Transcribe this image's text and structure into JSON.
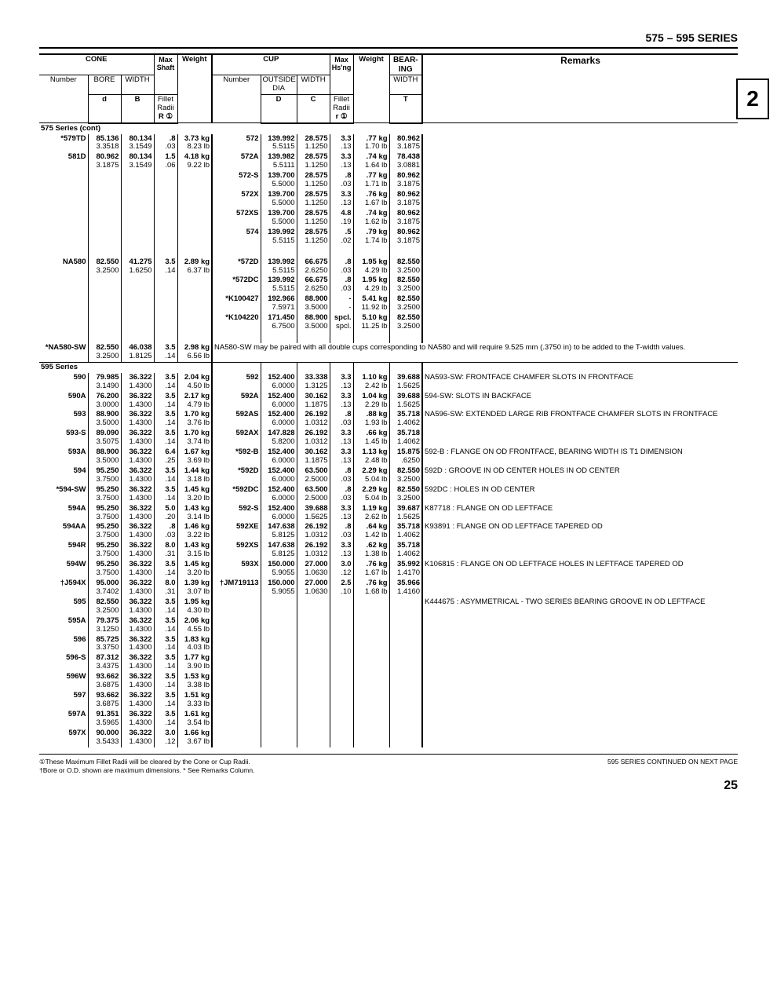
{
  "page": {
    "series_title": "575 – 595 SERIES",
    "section_tab": "2",
    "page_number": "25",
    "continued": "595 SERIES CONTINUED ON NEXT PAGE"
  },
  "header": {
    "cone": "CONE",
    "cup": "CUP",
    "bearing": "BEAR-\nING",
    "remarks": "Remarks",
    "number": "Number",
    "bore": "BORE",
    "width": "WIDTH",
    "max_shaft": "Max\nShaft",
    "fillet": "Fillet\nRadii",
    "weight": "Weight",
    "outside_dia": "OUTSIDE\nDIA",
    "max_hsng": "Max\nHs'ng",
    "d": "d",
    "B": "B",
    "R": "R ①",
    "D": "D",
    "C": "C",
    "r": "r ①",
    "T": "T"
  },
  "series575_label": "575 Series (cont)",
  "series595_label": "595 Series",
  "na580sw_remark": "NA580-SW may be paired with all double cups corresponding to NA580 and will require 9.525 mm (.3750 in) to be added to the T-width values.",
  "remarks595": [
    "NA593-SW: FRONTFACE CHAMFER SLOTS IN FRONTFACE",
    "594-SW: SLOTS IN BACKFACE",
    "NA596-SW: EXTENDED LARGE RIB FRONTFACE CHAMFER SLOTS IN FRONTFACE",
    "592-B : FLANGE ON OD FRONTFACE, BEARING WIDTH IS T1 DIMENSION",
    "592D : GROOVE IN OD CENTER HOLES IN OD CENTER",
    "592DC : HOLES IN OD CENTER",
    "K87718 : FLANGE ON OD LEFTFACE",
    "K93891 : FLANGE ON OD LEFTFACE TAPERED OD",
    "K106815 : FLANGE ON OD LEFTFACE HOLES IN LEFTFACE TAPERED OD",
    "K444675 : ASYMMETRICAL - TWO SERIES BEARING GROOVE IN OD LEFTFACE"
  ],
  "footnotes": {
    "f1": "①These Maximum Fillet Radii will be cleared by the Cone or Cup Radii.",
    "f2": "†Bore or O.D. shown are maximum dimensions.   * See Remarks Column."
  },
  "cones575": [
    {
      "n": "*579TD",
      "d": [
        "85.136",
        "3.3518"
      ],
      "B": [
        "80.134",
        "3.1549"
      ],
      "R": [
        ".8",
        ".03"
      ],
      "w": [
        "3.73 kg",
        "8.23 lb"
      ]
    },
    {
      "n": "581D",
      "d": [
        "80.962",
        "3.1875"
      ],
      "B": [
        "80.134",
        "3.1549"
      ],
      "R": [
        "1.5",
        ".06"
      ],
      "w": [
        "4.18 kg",
        "9.22 lb"
      ]
    },
    {
      "n": "NA580",
      "d": [
        "82.550",
        "3.2500"
      ],
      "B": [
        "41.275",
        "1.6250"
      ],
      "R": [
        "3.5",
        ".14"
      ],
      "w": [
        "2.89 kg",
        "6.37 lb"
      ]
    },
    {
      "n": "*NA580-SW",
      "d": [
        "82.550",
        "3.2500"
      ],
      "B": [
        "46.038",
        "1.8125"
      ],
      "R": [
        "3.5",
        ".14"
      ],
      "w": [
        "2.98 kg",
        "6.56 lb"
      ]
    }
  ],
  "cups575a": [
    {
      "n": "572",
      "D": [
        "139.992",
        "5.5115"
      ],
      "C": [
        "28.575",
        "1.1250"
      ],
      "r": [
        "3.3",
        ".13"
      ],
      "w": [
        ".77 kg",
        "1.70 lb"
      ],
      "T": [
        "80.962",
        "3.1875"
      ]
    },
    {
      "n": "572A",
      "D": [
        "139.982",
        "5.5111"
      ],
      "C": [
        "28.575",
        "1.1250"
      ],
      "r": [
        "3.3",
        ".13"
      ],
      "w": [
        ".74 kg",
        "1.64 lb"
      ],
      "T": [
        "78.438",
        "3.0881"
      ]
    },
    {
      "n": "572-S",
      "D": [
        "139.700",
        "5.5000"
      ],
      "C": [
        "28.575",
        "1.1250"
      ],
      "r": [
        ".8",
        ".03"
      ],
      "w": [
        ".77 kg",
        "1.71 lb"
      ],
      "T": [
        "80.962",
        "3.1875"
      ]
    },
    {
      "n": "572X",
      "D": [
        "139.700",
        "5.5000"
      ],
      "C": [
        "28.575",
        "1.1250"
      ],
      "r": [
        "3.3",
        ".13"
      ],
      "w": [
        ".76 kg",
        "1.67 lb"
      ],
      "T": [
        "80.962",
        "3.1875"
      ]
    },
    {
      "n": "572XS",
      "D": [
        "139.700",
        "5.5000"
      ],
      "C": [
        "28.575",
        "1.1250"
      ],
      "r": [
        "4.8",
        ".19"
      ],
      "w": [
        ".74 kg",
        "1.62 lb"
      ],
      "T": [
        "80.962",
        "3.1875"
      ]
    },
    {
      "n": "574",
      "D": [
        "139.992",
        "5.5115"
      ],
      "C": [
        "28.575",
        "1.1250"
      ],
      "r": [
        ".5",
        ".02"
      ],
      "w": [
        ".79 kg",
        "1.74 lb"
      ],
      "T": [
        "80.962",
        "3.1875"
      ]
    }
  ],
  "cups575b": [
    {
      "n": "*572D",
      "D": [
        "139.992",
        "5.5115"
      ],
      "C": [
        "66.675",
        "2.6250"
      ],
      "r": [
        ".8",
        ".03"
      ],
      "w": [
        "1.95 kg",
        "4.29 lb"
      ],
      "T": [
        "82.550",
        "3.2500"
      ]
    },
    {
      "n": "*572DC",
      "D": [
        "139.992",
        "5.5115"
      ],
      "C": [
        "66.675",
        "2.6250"
      ],
      "r": [
        ".8",
        ".03"
      ],
      "w": [
        "1.95 kg",
        "4.29 lb"
      ],
      "T": [
        "82.550",
        "3.2500"
      ]
    },
    {
      "n": "*K100427",
      "D": [
        "192.966",
        "7.5971"
      ],
      "C": [
        "88.900",
        "3.5000"
      ],
      "r": [
        "-",
        "-"
      ],
      "w": [
        "5.41 kg",
        "11.92 lb"
      ],
      "T": [
        "82.550",
        "3.2500"
      ]
    },
    {
      "n": "*K104220",
      "D": [
        "171.450",
        "6.7500"
      ],
      "C": [
        "88.900",
        "3.5000"
      ],
      "r": [
        "spcl.",
        "spcl."
      ],
      "w": [
        "5.10 kg",
        "11.25 lb"
      ],
      "T": [
        "82.550",
        "3.2500"
      ]
    }
  ],
  "rows595": [
    {
      "cone": {
        "n": "590",
        "d": [
          "79.985",
          "3.1490"
        ],
        "B": [
          "36.322",
          "1.4300"
        ],
        "R": [
          "3.5",
          ".14"
        ],
        "w": [
          "2.04 kg",
          "4.50 lb"
        ]
      },
      "cup": {
        "n": "592",
        "D": [
          "152.400",
          "6.0000"
        ],
        "C": [
          "33.338",
          "1.3125"
        ],
        "r": [
          "3.3",
          ".13"
        ],
        "w": [
          "1.10 kg",
          "2.42 lb"
        ],
        "T": [
          "39.688",
          "1.5625"
        ]
      }
    },
    {
      "cone": {
        "n": "590A",
        "d": [
          "76.200",
          "3.0000"
        ],
        "B": [
          "36.322",
          "1.4300"
        ],
        "R": [
          "3.5",
          ".14"
        ],
        "w": [
          "2.17 kg",
          "4.79 lb"
        ]
      },
      "cup": {
        "n": "592A",
        "D": [
          "152.400",
          "6.0000"
        ],
        "C": [
          "30.162",
          "1.1875"
        ],
        "r": [
          "3.3",
          ".13"
        ],
        "w": [
          "1.04 kg",
          "2.29 lb"
        ],
        "T": [
          "39.688",
          "1.5625"
        ]
      }
    },
    {
      "cone": {
        "n": "593",
        "d": [
          "88.900",
          "3.5000"
        ],
        "B": [
          "36.322",
          "1.4300"
        ],
        "R": [
          "3.5",
          ".14"
        ],
        "w": [
          "1.70 kg",
          "3.76 lb"
        ]
      },
      "cup": {
        "n": "592AS",
        "D": [
          "152.400",
          "6.0000"
        ],
        "C": [
          "26.192",
          "1.0312"
        ],
        "r": [
          ".8",
          ".03"
        ],
        "w": [
          ".88 kg",
          "1.93 lb"
        ],
        "T": [
          "35.718",
          "1.4062"
        ]
      }
    },
    {
      "cone": {
        "n": "593-S",
        "d": [
          "89.090",
          "3.5075"
        ],
        "B": [
          "36.322",
          "1.4300"
        ],
        "R": [
          "3.5",
          ".14"
        ],
        "w": [
          "1.70 kg",
          "3.74 lb"
        ]
      },
      "cup": {
        "n": "592AX",
        "D": [
          "147.828",
          "5.8200"
        ],
        "C": [
          "26.192",
          "1.0312"
        ],
        "r": [
          "3.3",
          ".13"
        ],
        "w": [
          ".66 kg",
          "1.45 lb"
        ],
        "T": [
          "35.718",
          "1.4062"
        ]
      }
    },
    {
      "cone": {
        "n": "593A",
        "d": [
          "88.900",
          "3.5000"
        ],
        "B": [
          "36.322",
          "1.4300"
        ],
        "R": [
          "6.4",
          ".25"
        ],
        "w": [
          "1.67 kg",
          "3.69 lb"
        ]
      },
      "cup": {
        "n": "*592-B",
        "D": [
          "152.400",
          "6.0000"
        ],
        "C": [
          "30.162",
          "1.1875"
        ],
        "r": [
          "3.3",
          ".13"
        ],
        "w": [
          "1.13 kg",
          "2.48 lb"
        ],
        "T": [
          "15.875",
          ".6250"
        ]
      }
    },
    {
      "cone": {
        "n": "594",
        "d": [
          "95.250",
          "3.7500"
        ],
        "B": [
          "36.322",
          "1.4300"
        ],
        "R": [
          "3.5",
          ".14"
        ],
        "w": [
          "1.44 kg",
          "3.18 lb"
        ]
      },
      "cup": {
        "n": "*592D",
        "D": [
          "152.400",
          "6.0000"
        ],
        "C": [
          "63.500",
          "2.5000"
        ],
        "r": [
          ".8",
          ".03"
        ],
        "w": [
          "2.29 kg",
          "5.04 lb"
        ],
        "T": [
          "82.550",
          "3.2500"
        ]
      }
    },
    {
      "cone": {
        "n": "*594-SW",
        "d": [
          "95.250",
          "3.7500"
        ],
        "B": [
          "36.322",
          "1.4300"
        ],
        "R": [
          "3.5",
          ".14"
        ],
        "w": [
          "1.45 kg",
          "3.20 lb"
        ]
      },
      "cup": {
        "n": "*592DC",
        "D": [
          "152.400",
          "6.0000"
        ],
        "C": [
          "63.500",
          "2.5000"
        ],
        "r": [
          ".8",
          ".03"
        ],
        "w": [
          "2.29 kg",
          "5.04 lb"
        ],
        "T": [
          "82.550",
          "3.2500"
        ]
      }
    },
    {
      "cone": {
        "n": "594A",
        "d": [
          "95.250",
          "3.7500"
        ],
        "B": [
          "36.322",
          "1.4300"
        ],
        "R": [
          "5.0",
          ".20"
        ],
        "w": [
          "1.43 kg",
          "3.14 lb"
        ]
      },
      "cup": {
        "n": "592-S",
        "D": [
          "152.400",
          "6.0000"
        ],
        "C": [
          "39.688",
          "1.5625"
        ],
        "r": [
          "3.3",
          ".13"
        ],
        "w": [
          "1.19 kg",
          "2.62 lb"
        ],
        "T": [
          "39.687",
          "1.5625"
        ]
      }
    },
    {
      "cone": {
        "n": "594AA",
        "d": [
          "95.250",
          "3.7500"
        ],
        "B": [
          "36.322",
          "1.4300"
        ],
        "R": [
          ".8",
          ".03"
        ],
        "w": [
          "1.46 kg",
          "3.22 lb"
        ]
      },
      "cup": {
        "n": "592XE",
        "D": [
          "147.638",
          "5.8125"
        ],
        "C": [
          "26.192",
          "1.0312"
        ],
        "r": [
          ".8",
          ".03"
        ],
        "w": [
          ".64 kg",
          "1.42 lb"
        ],
        "T": [
          "35.718",
          "1.4062"
        ]
      }
    },
    {
      "cone": {
        "n": "594R",
        "d": [
          "95.250",
          "3.7500"
        ],
        "B": [
          "36.322",
          "1.4300"
        ],
        "R": [
          "8.0",
          ".31"
        ],
        "w": [
          "1.43 kg",
          "3.15 lb"
        ]
      },
      "cup": {
        "n": "592XS",
        "D": [
          "147.638",
          "5.8125"
        ],
        "C": [
          "26.192",
          "1.0312"
        ],
        "r": [
          "3.3",
          ".13"
        ],
        "w": [
          ".62 kg",
          "1.38 lb"
        ],
        "T": [
          "35.718",
          "1.4062"
        ]
      }
    },
    {
      "cone": {
        "n": "594W",
        "d": [
          "95.250",
          "3.7500"
        ],
        "B": [
          "36.322",
          "1.4300"
        ],
        "R": [
          "3.5",
          ".14"
        ],
        "w": [
          "1.45 kg",
          "3.20 lb"
        ]
      },
      "cup": {
        "n": "593X",
        "D": [
          "150.000",
          "5.9055"
        ],
        "C": [
          "27.000",
          "1.0630"
        ],
        "r": [
          "3.0",
          ".12"
        ],
        "w": [
          ".76 kg",
          "1.67 lb"
        ],
        "T": [
          "35.992",
          "1.4170"
        ]
      }
    },
    {
      "cone": {
        "n": "†J594X",
        "d": [
          "95.000",
          "3.7402"
        ],
        "B": [
          "36.322",
          "1.4300"
        ],
        "R": [
          "8.0",
          ".31"
        ],
        "w": [
          "1.39 kg",
          "3.07 lb"
        ]
      },
      "cup": {
        "n": "†JM719113",
        "D": [
          "150.000",
          "5.9055"
        ],
        "C": [
          "27.000",
          "1.0630"
        ],
        "r": [
          "2.5",
          ".10"
        ],
        "w": [
          ".76 kg",
          "1.68 lb"
        ],
        "T": [
          "35.966",
          "1.4160"
        ]
      }
    },
    {
      "cone": {
        "n": "595",
        "d": [
          "82.550",
          "3.2500"
        ],
        "B": [
          "36.322",
          "1.4300"
        ],
        "R": [
          "3.5",
          ".14"
        ],
        "w": [
          "1.95 kg",
          "4.30 lb"
        ]
      }
    },
    {
      "cone": {
        "n": "595A",
        "d": [
          "79.375",
          "3.1250"
        ],
        "B": [
          "36.322",
          "1.4300"
        ],
        "R": [
          "3.5",
          ".14"
        ],
        "w": [
          "2.06 kg",
          "4.55 lb"
        ]
      }
    },
    {
      "cone": {
        "n": "596",
        "d": [
          "85.725",
          "3.3750"
        ],
        "B": [
          "36.322",
          "1.4300"
        ],
        "R": [
          "3.5",
          ".14"
        ],
        "w": [
          "1.83 kg",
          "4.03 lb"
        ]
      }
    },
    {
      "cone": {
        "n": "596-S",
        "d": [
          "87.312",
          "3.4375"
        ],
        "B": [
          "36.322",
          "1.4300"
        ],
        "R": [
          "3.5",
          ".14"
        ],
        "w": [
          "1.77 kg",
          "3.90 lb"
        ]
      }
    },
    {
      "cone": {
        "n": "596W",
        "d": [
          "93.662",
          "3.6875"
        ],
        "B": [
          "36.322",
          "1.4300"
        ],
        "R": [
          "3.5",
          ".14"
        ],
        "w": [
          "1.53 kg",
          "3.38 lb"
        ]
      }
    },
    {
      "cone": {
        "n": "597",
        "d": [
          "93.662",
          "3.6875"
        ],
        "B": [
          "36.322",
          "1.4300"
        ],
        "R": [
          "3.5",
          ".14"
        ],
        "w": [
          "1.51 kg",
          "3.33 lb"
        ]
      }
    },
    {
      "cone": {
        "n": "597A",
        "d": [
          "91.351",
          "3.5965"
        ],
        "B": [
          "36.322",
          "1.4300"
        ],
        "R": [
          "3.5",
          ".14"
        ],
        "w": [
          "1.61 kg",
          "3.54 lb"
        ]
      }
    },
    {
      "cone": {
        "n": "597X",
        "d": [
          "90.000",
          "3.5433"
        ],
        "B": [
          "36.322",
          "1.4300"
        ],
        "R": [
          "3.0",
          ".12"
        ],
        "w": [
          "1.66 kg",
          "3.67 lb"
        ]
      }
    }
  ]
}
